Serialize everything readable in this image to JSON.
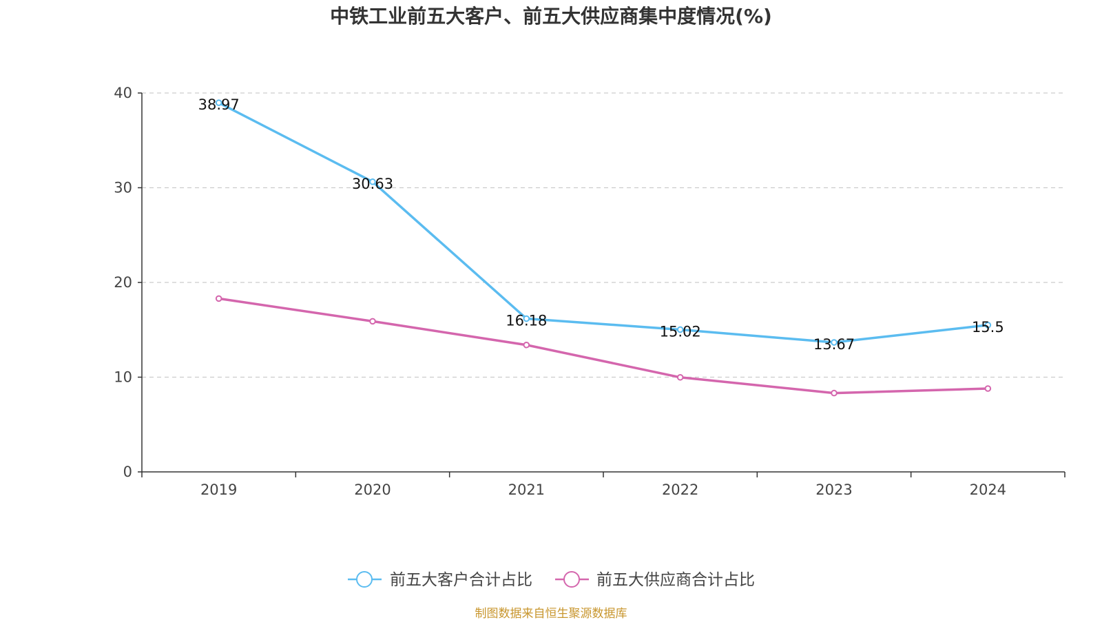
{
  "chart_data": {
    "type": "line",
    "title": "中铁工业前五大客户、前五大供应商集中度情况(%)",
    "categories": [
      "2019",
      "2020",
      "2021",
      "2022",
      "2023",
      "2024"
    ],
    "series": [
      {
        "name": "前五大客户合计占比",
        "color": "#5bbcf0",
        "values": [
          38.97,
          30.63,
          16.18,
          15.02,
          13.67,
          15.5
        ],
        "show_labels": true
      },
      {
        "name": "前五大供应商合计占比",
        "color": "#d466ad",
        "values": [
          18.3,
          15.9,
          13.4,
          9.98,
          8.32,
          8.8
        ],
        "show_labels": false
      }
    ],
    "data_labels": [
      "38.97",
      "30.63",
      "16.18",
      "15.02",
      "13.67",
      "15.5"
    ],
    "ylim": [
      0,
      40
    ],
    "yticks": [
      "0",
      "10",
      "20",
      "30",
      "40"
    ],
    "xlabel": "",
    "ylabel": "",
    "grid": true,
    "legend": "bottom-center"
  },
  "source_note": "制图数据来自恒生聚源数据库",
  "colors": {
    "source_note": "#c8962e",
    "axis": "#333333",
    "grid": "#cccccc"
  }
}
